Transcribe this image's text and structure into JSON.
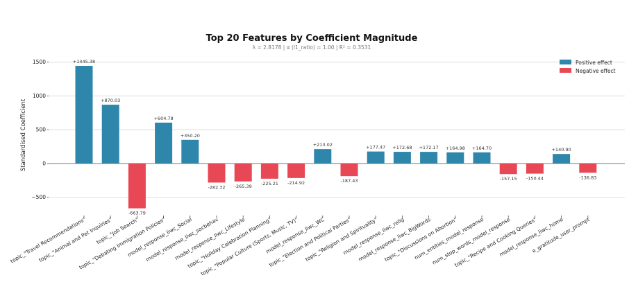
{
  "chart_data": {
    "type": "bar",
    "title": "Top 20 Features by Coefficient Magnitude",
    "subtitle": "λ = 2.8178   |   α (l1_ratio) = 1.00   |   R² = 0.3531",
    "ylabel": "Standardised Coefficient",
    "xlabel": "",
    "ylim": [
      -760,
      1620
    ],
    "yticks": [
      -500,
      0,
      500,
      1000,
      1500
    ],
    "ytick_labels": [
      "−500",
      "0",
      "500",
      "1000",
      "1500"
    ],
    "grid": true,
    "legend_position": "top-right",
    "legend": [
      {
        "label": "Positive effect",
        "color": "#2e86ab"
      },
      {
        "label": "Negative effect",
        "color": "#e84855"
      }
    ],
    "categories": [
      "topic_\"Travel Recommendations\"",
      "topic_\"Animal and Pet Inquiries\"",
      "topic_\"Job Search\"",
      "topic_\"Debating Immigration Policies\"",
      "model_response_liwc_Social",
      "model_response_liwc_socbehav",
      "model_response_liwc_Lifestyle",
      "topic_\"Holiday Celebration Planning\"",
      "topic_\"Popular Culture (Sports, Music, TV)\"",
      "model_response_liwc_WC",
      "topic_\"Election and Political Parties\"",
      "topic_\"Religion and Spirituality\"",
      "model_response_liwc_relig",
      "model_response_liwc_BigWords",
      "topic_\"Discussions on Abortion\"",
      "num_entities_model_response",
      "num_stop_words_model_response",
      "topic_\"Recipe and Cooking Queries\"",
      "model_response_liwc_home",
      "e_gratitude_user_prompt"
    ],
    "values": [
      1445.38,
      870.03,
      -663.79,
      604.78,
      350.2,
      -282.32,
      -265.39,
      -225.21,
      -214.92,
      213.02,
      -187.43,
      177.47,
      172.68,
      172.17,
      164.98,
      164.7,
      -157.15,
      -150.44,
      140.9,
      -136.83
    ],
    "data_labels": [
      "+1445.38",
      "+870.03",
      "-663.79",
      "+604.78",
      "+350.20",
      "-282.32",
      "-265.39",
      "-225.21",
      "-214.92",
      "+213.02",
      "-187.43",
      "+177.47",
      "+172.68",
      "+172.17",
      "+164.98",
      "+164.70",
      "-157.15",
      "-150.44",
      "+140.90",
      "-136.83"
    ]
  }
}
